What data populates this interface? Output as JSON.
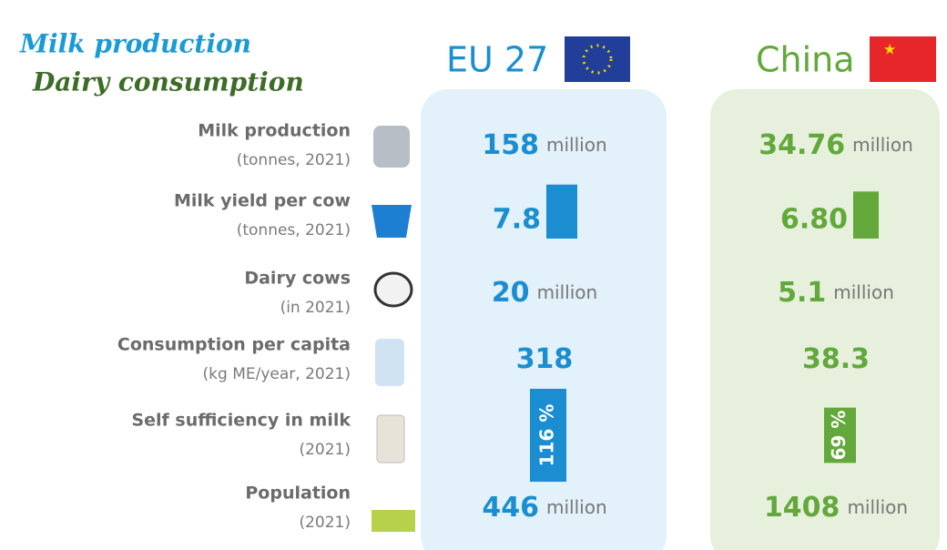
{
  "title": [
    "Milk production",
    "Dairy consumption"
  ],
  "rows": [
    {
      "label": "Milk production",
      "sub": "(tonnes, 2021)"
    },
    {
      "label": "Milk yield per cow",
      "sub": "(tonnes, 2021)"
    },
    {
      "label": "Dairy cows",
      "sub": "(in 2021)"
    },
    {
      "label": "Consumption per capita",
      "sub": "(kg ME/year, 2021)"
    },
    {
      "label": "Self sufficiency in milk",
      "sub": "(2021)"
    },
    {
      "label": "Population",
      "sub": "(2021)"
    }
  ],
  "regions": [
    {
      "name": "EU 27",
      "color": "#1a8ed0",
      "panel": "#e2f1fa",
      "values": [
        {
          "text": "158",
          "unit": "million"
        },
        {
          "value": 7.8,
          "label": "7.8"
        },
        {
          "text": "20",
          "unit": "million"
        },
        {
          "text": "318"
        },
        {
          "value": 116,
          "label": "116 %"
        },
        {
          "text": "446",
          "unit": "million"
        }
      ]
    },
    {
      "name": "China",
      "color": "#62a83a",
      "panel": "#e6f0dc",
      "values": [
        {
          "text": "34.76",
          "unit": "million"
        },
        {
          "value": 6.8,
          "label": "6.80"
        },
        {
          "text": "5.1",
          "unit": "million"
        },
        {
          "text": "38.3"
        },
        {
          "value": 69,
          "label": "69 %"
        },
        {
          "text": "1408",
          "unit": "million"
        }
      ]
    }
  ]
}
